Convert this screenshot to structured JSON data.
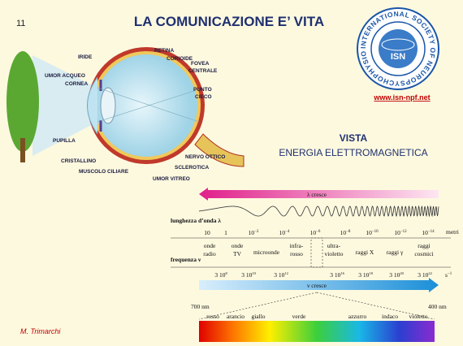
{
  "slide_number": "11",
  "title": "LA COMUNICAZIONE E’ VITA",
  "eye_labels": {
    "iride": "IRIDE",
    "umor_acqueo": "UMOR ACQUEO",
    "cornea": "CORNEA",
    "pupilla": "PUPILLA",
    "cristallino": "CRISTALLINO",
    "muscolo_ciliare": "MUSCOLO CILIARE",
    "umor_vitreo": "UMOR VITREO",
    "sclerotica": "SCLEROTICA",
    "nervo_ottico": "NERVO OTTICO",
    "punto_cieco": [
      "PUNTO",
      "CIECO"
    ],
    "fovea_centrale": [
      "FOVEA",
      "CENTRALE"
    ],
    "corioide": "CORIOIDE",
    "retina": "RETINA"
  },
  "logo": {
    "ring_text": "INTERNATIONAL SOCIETY OF NEUROPSYCHOPHYSIOLOGY",
    "acronym": "ISN"
  },
  "url": "www.isn-npf.net",
  "heading": "VISTA",
  "subheading": "ENERGIA ELETTROMAGNETICA",
  "spectrum": {
    "lambda_arrow": "λ cresce",
    "wavelength_label": "lunghezza d’onda λ",
    "wavelengths": [
      {
        "base": "10",
        "exp": ""
      },
      {
        "base": "1",
        "exp": ""
      },
      {
        "base": "10",
        "exp": "−2"
      },
      {
        "base": "10",
        "exp": "−4"
      },
      {
        "base": "10",
        "exp": "−6"
      },
      {
        "base": "10",
        "exp": "−8"
      },
      {
        "base": "10",
        "exp": "−10"
      },
      {
        "base": "10",
        "exp": "−12"
      },
      {
        "base": "10",
        "exp": "−14"
      }
    ],
    "wavelength_unit": "metri",
    "frequency_label": "frequenza ν",
    "bands": [
      [
        "onde",
        "radio"
      ],
      [
        "onde",
        "TV"
      ],
      [
        "microonde"
      ],
      [
        "infra-",
        "rosso"
      ],
      [
        "ultra-",
        "violetto"
      ],
      [
        "raggi X"
      ],
      [
        "raggi γ"
      ],
      [
        "raggi",
        "cosmici"
      ]
    ],
    "frequencies": [
      {
        "base": "3 10",
        "exp": "8"
      },
      {
        "base": "3 10",
        "exp": "10"
      },
      {
        "base": "3 10",
        "exp": "12"
      },
      {
        "base": "3 10",
        "exp": "16"
      },
      {
        "base": "3 10",
        "exp": "18"
      },
      {
        "base": "3 10",
        "exp": "20"
      },
      {
        "base": "3 10",
        "exp": "22"
      }
    ],
    "frequency_unit": {
      "base": "s",
      "exp": "−1"
    },
    "nu_arrow": "ν cresce",
    "visible_left": "700 nm",
    "visible_right": "400 nm",
    "colors": [
      "rosso",
      "arancio",
      "giallo",
      "verde",
      "azzurro",
      "indaco",
      "violetto"
    ]
  },
  "author": "M. Trimarchi"
}
